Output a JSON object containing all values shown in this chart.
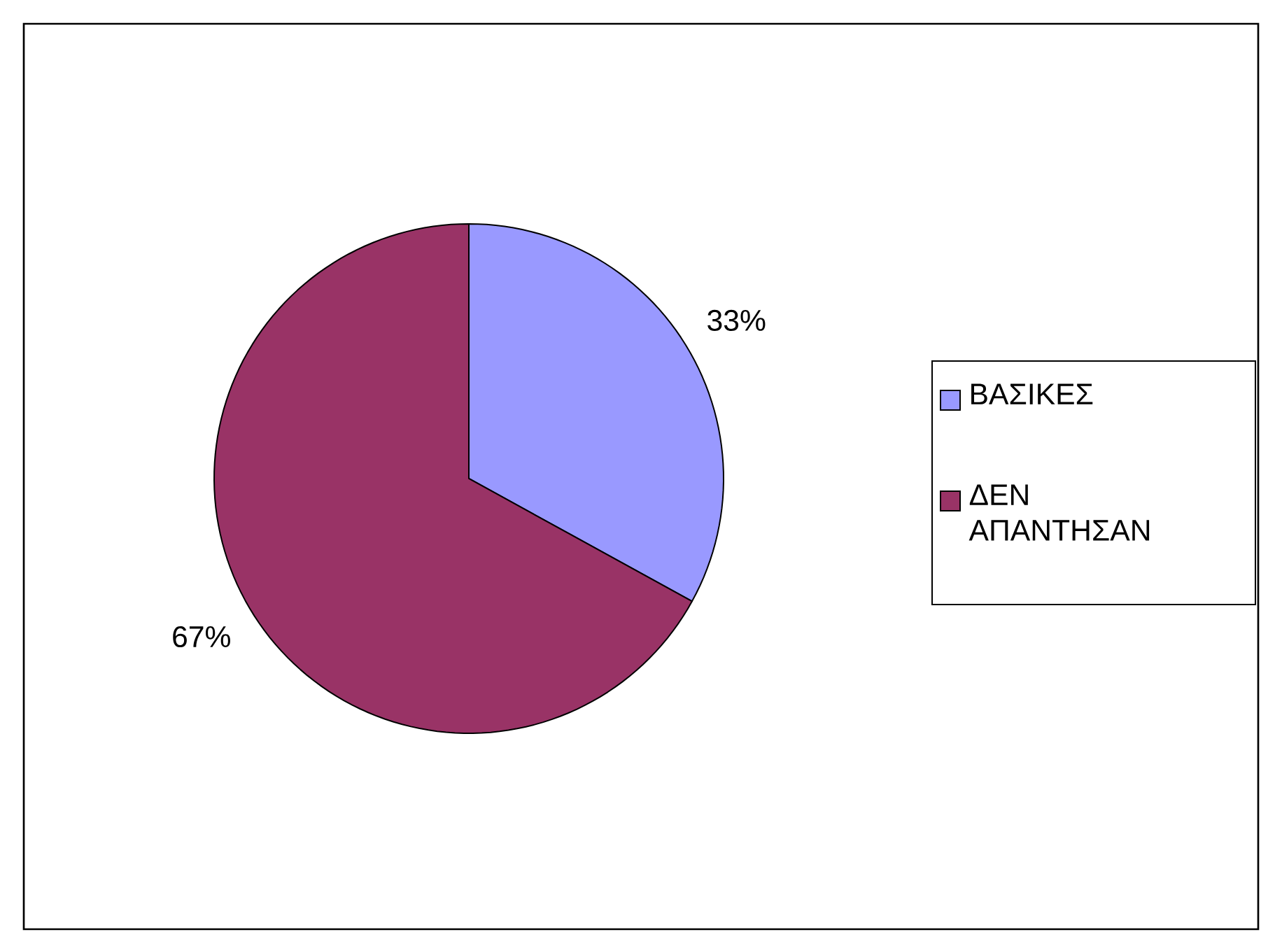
{
  "chart_data": {
    "type": "pie",
    "categories": [
      "ΒΑΣΙΚΕΣ",
      "ΔΕΝ ΑΠΑΝΤΗΣΑΝ"
    ],
    "values": [
      33,
      67
    ],
    "colors": [
      "#9999ff",
      "#993366"
    ],
    "value_labels": [
      "33%",
      "67%"
    ],
    "legend": "right"
  }
}
